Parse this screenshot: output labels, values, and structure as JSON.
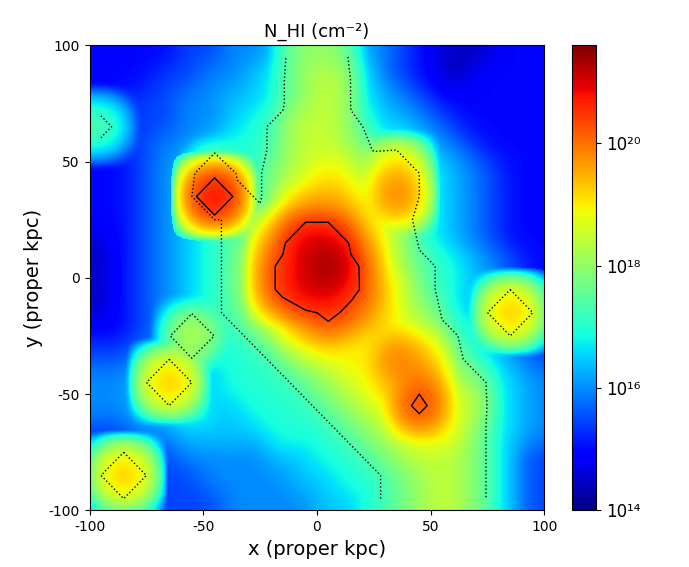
{
  "chart_data": {
    "type": "heatmap",
    "title": "N_HI (cm⁻²)",
    "x_label": "x (proper kpc)",
    "y_label": "y (proper kpc)",
    "xlim": [
      -100,
      100
    ],
    "ylim": [
      -100,
      100
    ],
    "xticks": [
      -100,
      -50,
      0,
      50,
      100
    ],
    "yticks": [
      -100,
      -50,
      0,
      50,
      100
    ],
    "log": true,
    "colorbar_range": [
      100000000000000.0,
      4e+21
    ],
    "colorbar_ticks": [
      {
        "value": 100000000000000.0,
        "label": "10¹⁴"
      },
      {
        "value": 1e+16,
        "label": "10¹⁶"
      },
      {
        "value": 1e+18,
        "label": "10¹⁸"
      },
      {
        "value": 1e+20,
        "label": "10²⁰"
      }
    ],
    "contour_levels": [
      1.6e+17,
      2e+20
    ],
    "cells": [
      [
        1000000000000000.0,
        1000000000000000.0,
        1000000000000000.0,
        1000000000000000.0,
        3000000000000000.0,
        3000000000000000.0,
        1e+16,
        1e+16,
        3e+16,
        1e+18,
        1e+18,
        3e+16,
        1e+16,
        3000000000000000.0,
        1000000000000000.0,
        300000000000000.0,
        300000000000000.0,
        300000000000000.0,
        1000000000000000.0,
        1000000000000000.0
      ],
      [
        1000000000000000.0,
        1000000000000000.0,
        1000000000000000.0,
        3000000000000000.0,
        3000000000000000.0,
        1e+16,
        1e+16,
        3e+16,
        1e+17,
        1e+18,
        3e+18,
        1e+17,
        1e+16,
        3000000000000000.0,
        1000000000000000.0,
        300000000000000.0,
        300000000000000.0,
        1000000000000000.0,
        1000000000000000.0,
        1000000000000000.0
      ],
      [
        1000000000000000.0,
        1000000000000000.0,
        3000000000000000.0,
        3000000000000000.0,
        1e+16,
        1e+16,
        3e+16,
        3e+16,
        1e+17,
        1e+18,
        3e+18,
        1e+17,
        3e+16,
        1e+16,
        3000000000000000.0,
        1000000000000000.0,
        1000000000000000.0,
        1000000000000000.0,
        1000000000000000.0,
        1000000000000000.0
      ],
      [
        3e+17,
        1000000000000000.0,
        3000000000000000.0,
        3000000000000000.0,
        1e+16,
        1e+16,
        3e+16,
        1e+17,
        3e+17,
        3e+18,
        3e+18,
        3e+17,
        3e+16,
        3e+16,
        1e+16,
        3000000000000000.0,
        1000000000000000.0,
        1000000000000000.0,
        1000000000000000.0,
        1000000000000000.0
      ],
      [
        1000000000000000.0,
        1000000000000000.0,
        3000000000000000.0,
        1e+16,
        1e+16,
        3e+16,
        1e+17,
        1e+17,
        3e+17,
        3e+18,
        3e+18,
        1e+18,
        1e+17,
        1e+17,
        3e+16,
        1e+16,
        3000000000000000.0,
        1000000000000000.0,
        1000000000000000.0,
        1000000000000000.0
      ],
      [
        1000000000000000.0,
        1000000000000000.0,
        3000000000000000.0,
        1e+16,
        3e+16,
        1e+18,
        1e+17,
        1e+17,
        1e+18,
        3e+18,
        1e+19,
        3e+18,
        1e+18,
        3e+19,
        1e+17,
        3e+16,
        1e+16,
        3000000000000000.0,
        1000000000000000.0,
        1000000000000000.0
      ],
      [
        1000000000000000.0,
        1000000000000000.0,
        3000000000000000.0,
        1e+16,
        3e+16,
        1e+21,
        3e+17,
        1e+17,
        1e+18,
        1e+19,
        3e+19,
        1e+19,
        3e+18,
        1e+20,
        1e+17,
        3e+16,
        1e+16,
        3000000000000000.0,
        1000000000000000.0,
        1000000000000000.0
      ],
      [
        1000000000000000.0,
        1000000000000000.0,
        3000000000000000.0,
        1e+16,
        3e+16,
        1e+17,
        3e+17,
        3e+17,
        3e+18,
        1e+20,
        1e+20,
        3e+19,
        3e+18,
        3e+17,
        1e+17,
        3e+16,
        1e+16,
        3000000000000000.0,
        1000000000000000.0,
        1000000000000000.0
      ],
      [
        300000000000000.0,
        1000000000000000.0,
        3000000000000000.0,
        1e+16,
        3e+16,
        1e+17,
        3e+17,
        1e+18,
        1e+20,
        1e+21,
        1e+21,
        1e+20,
        1e+19,
        1e+18,
        1e+17,
        3e+16,
        1e+16,
        3000000000000000.0,
        1000000000000000.0,
        1000000000000000.0
      ],
      [
        300000000000000.0,
        1000000000000000.0,
        3000000000000000.0,
        1e+16,
        3e+16,
        1e+17,
        3e+17,
        3e+18,
        3e+20,
        1e+21,
        3e+21,
        3e+20,
        1e+19,
        1e+18,
        3e+17,
        1e+17,
        3e+16,
        1e+16,
        3000000000000000.0,
        1000000000000000.0
      ],
      [
        300000000000000.0,
        1000000000000000.0,
        3000000000000000.0,
        1e+16,
        3e+16,
        1e+17,
        3e+17,
        3e+18,
        3e+20,
        1e+21,
        1e+21,
        3e+20,
        3e+19,
        3e+18,
        3e+17,
        1e+17,
        3e+16,
        1e+16,
        3000000000000000.0,
        1000000000000000.0
      ],
      [
        300000000000000.0,
        1000000000000000.0,
        3000000000000000.0,
        1e+16,
        3e+16,
        1e+17,
        3e+17,
        1e+18,
        1e+19,
        1e+20,
        3e+20,
        1e+20,
        3e+19,
        3e+18,
        1e+18,
        1e+17,
        3e+16,
        1e+16,
        3e+19,
        3000000000000000.0
      ],
      [
        1000000000000000.0,
        1000000000000000.0,
        3000000000000000.0,
        1e+16,
        3e+18,
        1e+17,
        1e+17,
        3e+17,
        1e+18,
        1e+19,
        3e+19,
        1e+19,
        1e+19,
        1e+19,
        3e+18,
        3e+17,
        1e+17,
        3e+16,
        1e+16,
        3000000000000000.0
      ],
      [
        3000000000000000.0,
        3000000000000000.0,
        1e+16,
        1e+16,
        3e+16,
        3e+16,
        1e+17,
        1e+17,
        3e+17,
        1e+18,
        3e+18,
        1e+19,
        1e+19,
        1e+20,
        3e+19,
        1e+18,
        1e+17,
        3e+16,
        1e+16,
        3000000000000000.0
      ],
      [
        1e+16,
        1e+16,
        3e+16,
        3e+19,
        3e+16,
        3e+16,
        1e+17,
        1e+17,
        1e+17,
        3e+17,
        1e+18,
        3e+18,
        1e+19,
        3e+19,
        1e+20,
        3e+18,
        1e+18,
        1e+17,
        3e+16,
        1e+16
      ],
      [
        1e+16,
        1e+16,
        3e+16,
        3e+16,
        1e+17,
        3e+16,
        3e+16,
        1e+17,
        1e+17,
        1e+17,
        3e+17,
        1e+18,
        3e+18,
        1e+19,
        3e+20,
        1e+19,
        3e+18,
        1e+17,
        3e+16,
        1e+16
      ],
      [
        3000000000000000.0,
        3000000000000000.0,
        1e+16,
        1e+16,
        3e+16,
        3e+16,
        3e+16,
        3e+16,
        1e+17,
        1e+17,
        1e+17,
        3e+17,
        1e+18,
        3e+18,
        1e+19,
        1e+19,
        1e+18,
        1e+17,
        3e+16,
        1e+16
      ],
      [
        1000000000000000.0,
        1000000000000000.0,
        3000000000000000.0,
        3000000000000000.0,
        1e+16,
        1e+16,
        1e+16,
        1e+16,
        3e+16,
        3e+16,
        1e+17,
        1e+17,
        3e+17,
        1e+18,
        3e+18,
        3e+18,
        1e+18,
        1e+17,
        1e+16,
        3000000000000000.0
      ],
      [
        1000000000000000.0,
        3e+19,
        3000000000000000.0,
        3000000000000000.0,
        3000000000000000.0,
        1e+16,
        1e+16,
        1e+16,
        1e+16,
        3e+16,
        3e+16,
        1e+17,
        1e+17,
        3e+17,
        1e+18,
        3e+18,
        1e+18,
        1e+17,
        1e+16,
        3000000000000000.0
      ],
      [
        1000000000000000.0,
        1e+17,
        3000000000000000.0,
        3000000000000000.0,
        3000000000000000.0,
        3000000000000000.0,
        1e+16,
        1e+16,
        1e+16,
        1e+16,
        3e+16,
        3e+16,
        1e+17,
        3e+17,
        1e+18,
        3e+18,
        1e+18,
        1e+17,
        1e+16,
        3000000000000000.0
      ]
    ]
  }
}
